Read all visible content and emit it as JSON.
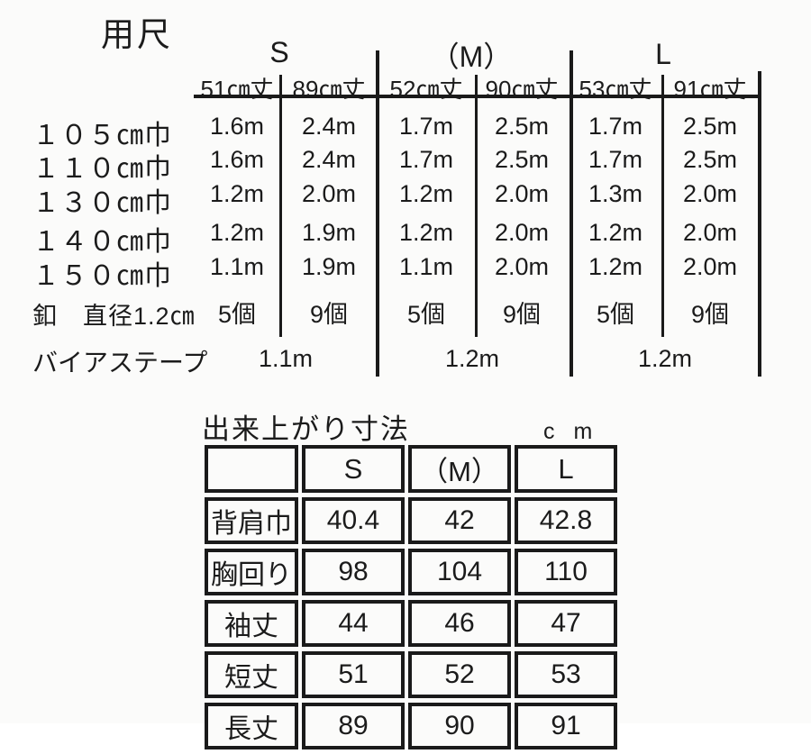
{
  "yardage": {
    "title": "用尺",
    "groups": [
      {
        "label": "S",
        "cols": [
          "51㎝丈",
          "89㎝丈"
        ]
      },
      {
        "label": "（M）",
        "cols": [
          "52㎝丈",
          "90㎝丈"
        ]
      },
      {
        "label": "L",
        "cols": [
          "53㎝丈",
          "91㎝丈"
        ]
      }
    ],
    "rows": [
      {
        "label": "１０５㎝巾",
        "values": [
          "1.6m",
          "2.4m",
          "1.7m",
          "2.5m",
          "1.7m",
          "2.5m"
        ]
      },
      {
        "label": "１１０㎝巾",
        "values": [
          "1.6m",
          "2.4m",
          "1.7m",
          "2.5m",
          "1.7m",
          "2.5m"
        ]
      },
      {
        "label": "１３０㎝巾",
        "values": [
          "1.2m",
          "2.0m",
          "1.2m",
          "2.0m",
          "1.3m",
          "2.0m"
        ]
      },
      {
        "label": "１４０㎝巾",
        "values": [
          "1.2m",
          "1.9m",
          "1.2m",
          "2.0m",
          "1.2m",
          "2.0m"
        ]
      },
      {
        "label": "１５０㎝巾",
        "values": [
          "1.1m",
          "1.9m",
          "1.1m",
          "2.0m",
          "1.2m",
          "2.0m"
        ]
      },
      {
        "label": "釦　直径1.2㎝",
        "values": [
          "5個",
          "9個",
          "5個",
          "9個",
          "5個",
          "9個"
        ]
      }
    ],
    "bias": {
      "label": "バイアステープ",
      "values": [
        "1.1m",
        "1.2m",
        "1.2m"
      ]
    }
  },
  "finished": {
    "title": "出来上がり寸法",
    "unit": "c m",
    "columns": [
      "S",
      "（M）",
      "L"
    ],
    "rows": [
      {
        "label": "背肩巾",
        "values": [
          "40.4",
          "42",
          "42.8"
        ]
      },
      {
        "label": "胸回り",
        "values": [
          "98",
          "104",
          "110"
        ]
      },
      {
        "label": "袖丈",
        "values": [
          "44",
          "46",
          "47"
        ]
      },
      {
        "label": "短丈",
        "values": [
          "51",
          "52",
          "53"
        ]
      },
      {
        "label": "長丈",
        "values": [
          "89",
          "90",
          "91"
        ]
      }
    ]
  }
}
